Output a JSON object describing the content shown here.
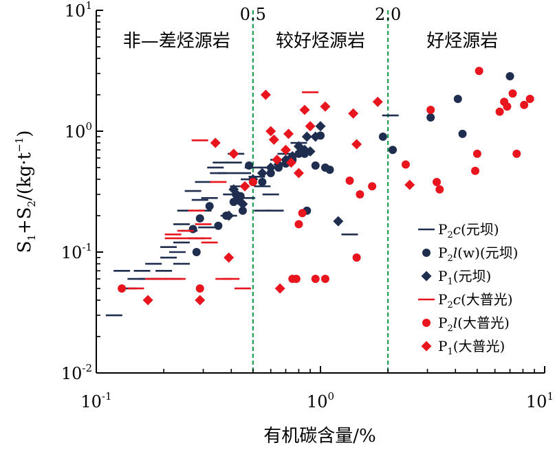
{
  "chart_data": {
    "type": "scatter",
    "x_scale": "log",
    "y_scale": "log",
    "xlim": [
      0.1,
      10
    ],
    "ylim": [
      0.01,
      10
    ],
    "x_ticks": [
      {
        "value": 0.1,
        "base": "10",
        "exp": "-1"
      },
      {
        "value": 1,
        "base": "10",
        "exp": "0"
      },
      {
        "value": 10,
        "base": "10",
        "exp": "1"
      }
    ],
    "y_ticks": [
      {
        "value": 0.01,
        "base": "10",
        "exp": "-2"
      },
      {
        "value": 0.1,
        "base": "10",
        "exp": "-1"
      },
      {
        "value": 1,
        "base": "10",
        "exp": "0"
      },
      {
        "value": 10,
        "base": "10",
        "exp": "1"
      }
    ],
    "xlabel": "有机碳含量/%",
    "ylabel": {
      "p1": "S",
      "s1": "1",
      "p2": "+S",
      "s2": "2",
      "p3": "/(kg·t",
      "sup": "−1",
      "p4": ")"
    },
    "thresholds": [
      {
        "value": 0.5,
        "label": "0.5"
      },
      {
        "value": 2.0,
        "label": "2.0"
      }
    ],
    "regions": [
      "非—差烃源岩",
      "较好烃源岩",
      "好烃源岩"
    ],
    "colors": {
      "yuanba": "#1f2d4f",
      "dapuguang": "#e8151e",
      "threshold": "#1e9e50"
    },
    "series": [
      {
        "name": "P2c(元坝)",
        "legend": {
          "pre": "P",
          "sub": "2",
          "it": "c",
          "post": "(元坝)"
        },
        "marker": "dash",
        "color_key": "yuanba",
        "points": [
          [
            0.12,
            0.03
          ],
          [
            0.13,
            0.07
          ],
          [
            0.14,
            0.05
          ],
          [
            0.15,
            0.06
          ],
          [
            0.16,
            0.07
          ],
          [
            0.17,
            0.06
          ],
          [
            0.18,
            0.08
          ],
          [
            0.19,
            0.06
          ],
          [
            0.2,
            0.07
          ],
          [
            0.21,
            0.11
          ],
          [
            0.21,
            0.09
          ],
          [
            0.22,
            0.06
          ],
          [
            0.23,
            0.1
          ],
          [
            0.24,
            0.08
          ],
          [
            0.24,
            0.12
          ],
          [
            0.24,
            0.17
          ],
          [
            0.25,
            0.22
          ],
          [
            0.26,
            0.15
          ],
          [
            0.27,
            0.32
          ],
          [
            0.28,
            0.13
          ],
          [
            0.29,
            0.27
          ],
          [
            0.3,
            0.22
          ],
          [
            0.3,
            0.38
          ],
          [
            0.31,
            0.16
          ],
          [
            0.32,
            0.28
          ],
          [
            0.34,
            0.5
          ],
          [
            0.35,
            0.45
          ],
          [
            0.36,
            0.55
          ],
          [
            0.38,
            0.45
          ],
          [
            0.39,
            0.2
          ],
          [
            0.4,
            0.3
          ],
          [
            0.41,
            0.55
          ],
          [
            0.42,
            0.65
          ],
          [
            0.43,
            0.35
          ],
          [
            0.45,
            0.45
          ],
          [
            0.47,
            0.28
          ],
          [
            0.48,
            0.4
          ],
          [
            0.5,
            0.5
          ],
          [
            0.52,
            0.42
          ],
          [
            0.55,
            0.22
          ],
          [
            0.55,
            0.35
          ],
          [
            0.58,
            0.5
          ],
          [
            0.6,
            0.3
          ],
          [
            0.63,
            0.22
          ],
          [
            0.65,
            0.58
          ],
          [
            0.7,
            0.65
          ],
          [
            0.8,
            0.8
          ],
          [
            1.35,
            0.14
          ],
          [
            2.05,
            1.35
          ]
        ]
      },
      {
        "name": "P2l(w)(元坝)",
        "legend": {
          "pre": "P",
          "sub": "2",
          "it": "l",
          "post": "(w)(元坝)"
        },
        "marker": "circle",
        "color_key": "yuanba",
        "points": [
          [
            0.27,
            0.155
          ],
          [
            0.28,
            0.1
          ],
          [
            0.29,
            0.19
          ],
          [
            0.32,
            0.24
          ],
          [
            0.35,
            0.165
          ],
          [
            0.38,
            0.2
          ],
          [
            0.41,
            0.26
          ],
          [
            0.42,
            0.3
          ],
          [
            0.44,
            0.29
          ],
          [
            0.45,
            0.22
          ],
          [
            0.48,
            0.52
          ],
          [
            0.5,
            0.38
          ],
          [
            0.55,
            0.38
          ],
          [
            0.6,
            0.45
          ],
          [
            0.65,
            0.5
          ],
          [
            0.7,
            0.54
          ],
          [
            0.75,
            0.58
          ],
          [
            0.8,
            0.65
          ],
          [
            0.82,
            0.68
          ],
          [
            0.85,
            0.65
          ],
          [
            0.87,
            0.22
          ],
          [
            0.95,
            0.52
          ],
          [
            1.0,
            0.92
          ],
          [
            1.05,
            0.5
          ],
          [
            1.1,
            0.48
          ],
          [
            1.9,
            0.9
          ],
          [
            2.1,
            0.7
          ],
          [
            3.1,
            1.3
          ],
          [
            4.1,
            1.85
          ],
          [
            4.3,
            0.95
          ],
          [
            7.0,
            2.85
          ]
        ]
      },
      {
        "name": "P1(元坝)",
        "legend": {
          "pre": "P",
          "sub": "1",
          "it": "",
          "post": "(元坝)"
        },
        "marker": "diamond",
        "color_key": "yuanba",
        "points": [
          [
            0.39,
            0.2
          ],
          [
            0.41,
            0.33
          ],
          [
            0.43,
            0.27
          ],
          [
            0.45,
            0.25
          ],
          [
            0.5,
            0.4
          ],
          [
            0.55,
            0.45
          ],
          [
            0.6,
            0.5
          ],
          [
            0.65,
            0.53
          ],
          [
            0.7,
            0.58
          ],
          [
            0.75,
            0.62
          ],
          [
            0.8,
            0.75
          ],
          [
            0.85,
            0.7
          ],
          [
            0.87,
            0.9
          ],
          [
            0.9,
            0.68
          ],
          [
            0.95,
            0.9
          ],
          [
            1.0,
            1.1
          ],
          [
            1.2,
            0.18
          ]
        ]
      },
      {
        "name": "P2c(大普光)",
        "legend": {
          "pre": "P",
          "sub": "2",
          "it": "c",
          "post": "(大普光)"
        },
        "marker": "dash",
        "color_key": "dapuguang",
        "points": [
          [
            0.15,
            0.05
          ],
          [
            0.18,
            0.06
          ],
          [
            0.2,
            0.06
          ],
          [
            0.22,
            0.14
          ],
          [
            0.22,
            0.13
          ],
          [
            0.23,
            0.06
          ],
          [
            0.25,
            0.15
          ],
          [
            0.26,
            0.13
          ],
          [
            0.28,
            0.22
          ],
          [
            0.29,
            0.84
          ],
          [
            0.3,
            0.17
          ],
          [
            0.3,
            0.13
          ],
          [
            0.32,
            0.12
          ],
          [
            0.35,
            0.38
          ],
          [
            0.37,
            0.06
          ],
          [
            0.4,
            0.06
          ],
          [
            0.45,
            0.05
          ],
          [
            0.9,
            2.1
          ]
        ]
      },
      {
        "name": "P2l(大普光)",
        "legend": {
          "pre": "P",
          "sub": "2",
          "it": "l",
          "post": "(大普光)"
        },
        "marker": "circle",
        "color_key": "dapuguang",
        "points": [
          [
            0.13,
            0.05
          ],
          [
            0.29,
            0.05
          ],
          [
            0.5,
            0.38
          ],
          [
            0.75,
            0.06
          ],
          [
            0.78,
            0.06
          ],
          [
            0.8,
            0.17
          ],
          [
            0.83,
            0.21
          ],
          [
            0.95,
            0.06
          ],
          [
            1.05,
            0.06
          ],
          [
            1.35,
            0.39
          ],
          [
            1.45,
            0.09
          ],
          [
            1.5,
            0.3
          ],
          [
            1.7,
            0.35
          ],
          [
            2.4,
            0.53
          ],
          [
            3.1,
            1.5
          ],
          [
            3.3,
            0.38
          ],
          [
            3.4,
            0.33
          ],
          [
            4.9,
            0.47
          ],
          [
            5.0,
            0.65
          ],
          [
            5.1,
            3.15
          ],
          [
            6.3,
            1.45
          ],
          [
            6.6,
            1.75
          ],
          [
            6.8,
            1.6
          ],
          [
            7.2,
            2.05
          ],
          [
            7.5,
            0.65
          ],
          [
            8.1,
            1.65
          ],
          [
            8.6,
            1.85
          ]
        ]
      },
      {
        "name": "P1(大普光)",
        "legend": {
          "pre": "P",
          "sub": "1",
          "it": "",
          "post": "(大普光)"
        },
        "marker": "diamond",
        "color_key": "dapuguang",
        "points": [
          [
            0.17,
            0.04
          ],
          [
            0.29,
            0.04
          ],
          [
            0.34,
            0.8
          ],
          [
            0.39,
            0.09
          ],
          [
            0.41,
            0.65
          ],
          [
            0.46,
            0.35
          ],
          [
            0.57,
            2.0
          ],
          [
            0.6,
            1.0
          ],
          [
            0.62,
            0.85
          ],
          [
            0.64,
            0.58
          ],
          [
            0.66,
            0.05
          ],
          [
            0.7,
            0.7
          ],
          [
            0.72,
            0.95
          ],
          [
            0.74,
            0.55
          ],
          [
            0.8,
            0.45
          ],
          [
            0.85,
            1.5
          ],
          [
            0.9,
            1.1
          ],
          [
            1.05,
            1.6
          ],
          [
            1.4,
            1.4
          ],
          [
            1.45,
            0.78
          ],
          [
            1.8,
            1.75
          ],
          [
            2.5,
            0.36
          ]
        ]
      }
    ]
  }
}
